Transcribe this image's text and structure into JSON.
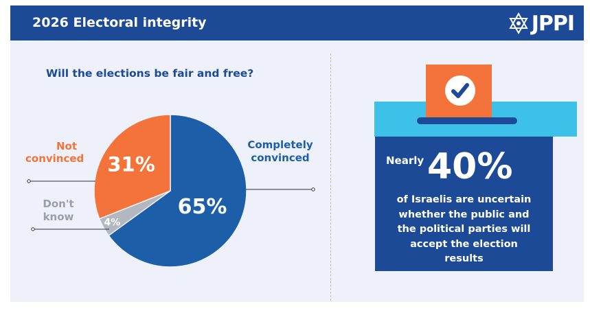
{
  "header": {
    "title": "2026 Electoral integrity",
    "logo_text": "JPPI"
  },
  "question": "Will the elections be fair and free?",
  "chart_data": {
    "type": "pie",
    "title": "Will the elections be fair and free?",
    "slices": [
      {
        "name": "Completely convinced",
        "value": 65,
        "label": "65%",
        "color": "#1c5fa8"
      },
      {
        "name": "Don't know",
        "value": 4,
        "label": "4%",
        "color": "#b3b7bf"
      },
      {
        "name": "Not convinced",
        "value": 31,
        "label": "31%",
        "color": "#f4733b"
      }
    ],
    "start_angle_deg": 0,
    "direction": "clockwise"
  },
  "labels": {
    "not_convinced_line1": "Not",
    "not_convinced_line2": "convinced",
    "completely_line1": "Completely",
    "completely_line2": "convinced",
    "dont_know_line1": "Don't",
    "dont_know_line2": "know"
  },
  "stat": {
    "prefix": "Nearly",
    "value": "40%",
    "text_lines": [
      "of Israelis are uncertain",
      "whether the public and",
      "the political parties will",
      "accept the election",
      "results"
    ]
  },
  "colors": {
    "navy": "#1c4a97",
    "blue": "#1c5fa8",
    "orange": "#f4733b",
    "gray": "#b3b7bf",
    "cyan": "#3ec1e8",
    "background": "#eef1fa"
  }
}
